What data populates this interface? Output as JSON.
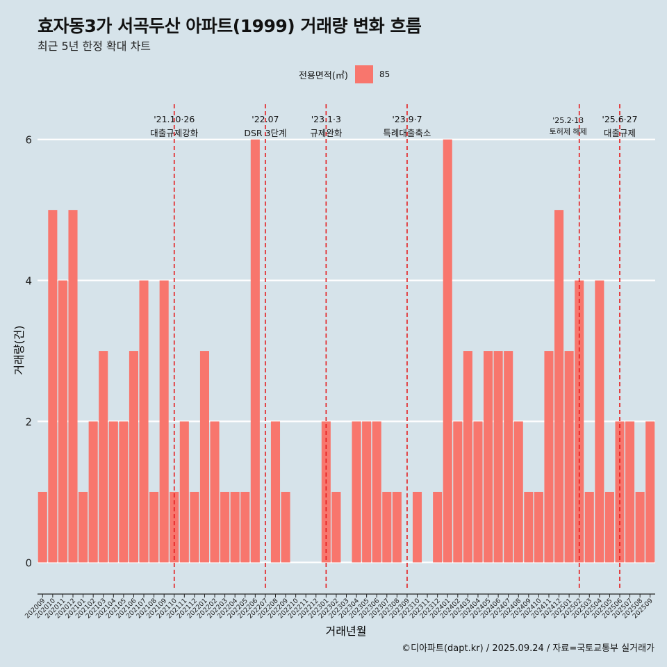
{
  "title": "효자동3가 서곡두산 아파트(1999) 거래량 변화 흐름",
  "subtitle": "최근 5년 한정 확대 차트",
  "legend": {
    "title": "전용면적(㎡)",
    "items": [
      {
        "label": "85",
        "color": "#f8766d"
      }
    ]
  },
  "caption": "©디아파트(dapt.kr) / 2025.09.24 / 자료=국토교통부 실거래가",
  "chart_data": {
    "type": "bar",
    "xlabel": "거래년월",
    "ylabel": "거래량(건)",
    "ylim": [
      -0.4,
      6.5
    ],
    "yticks": [
      0,
      2,
      4,
      6
    ],
    "bar_color": "#f8766d",
    "categories": [
      "202009",
      "202010",
      "202011",
      "202012",
      "202101",
      "202102",
      "202103",
      "202104",
      "202105",
      "202106",
      "202107",
      "202108",
      "202109",
      "202110",
      "202111",
      "202112",
      "202201",
      "202202",
      "202203",
      "202204",
      "202205",
      "202206",
      "202207",
      "202208",
      "202209",
      "202210",
      "202211",
      "202212",
      "202301",
      "202302",
      "202303",
      "202304",
      "202305",
      "202306",
      "202307",
      "202308",
      "202309",
      "202310",
      "202311",
      "202312",
      "202401",
      "202402",
      "202403",
      "202404",
      "202405",
      "202406",
      "202407",
      "202408",
      "202409",
      "202410",
      "202411",
      "202412",
      "202501",
      "202502",
      "202503",
      "202504",
      "202505",
      "202506",
      "202507",
      "202508",
      "202509"
    ],
    "series": [
      {
        "name": "85",
        "values": [
          1,
          5,
          4,
          5,
          1,
          2,
          3,
          2,
          2,
          3,
          4,
          1,
          4,
          1,
          2,
          1,
          3,
          2,
          1,
          1,
          1,
          6,
          0,
          2,
          1,
          0,
          0,
          0,
          2,
          1,
          0,
          2,
          2,
          2,
          1,
          1,
          0,
          1,
          0,
          1,
          6,
          2,
          3,
          2,
          3,
          3,
          3,
          2,
          1,
          1,
          3,
          5,
          3,
          4,
          1,
          4,
          1,
          2,
          2,
          1,
          2
        ]
      }
    ],
    "annotations": [
      {
        "category": "202110",
        "date": "'21.10·26",
        "label": "대출규제강화"
      },
      {
        "category": "202207",
        "date": "'22.07",
        "label": "DSR 3단계"
      },
      {
        "category": "202301",
        "date": "'23.1·3",
        "label": "규제완화"
      },
      {
        "category": "202309",
        "date": "'23.9·7",
        "label": "특례대출축소"
      },
      {
        "category": "202502",
        "date": "'25.2·13",
        "label": "토허제 해제"
      },
      {
        "category": "202506",
        "date": "'25.6·27",
        "label": "대출규제"
      }
    ]
  }
}
